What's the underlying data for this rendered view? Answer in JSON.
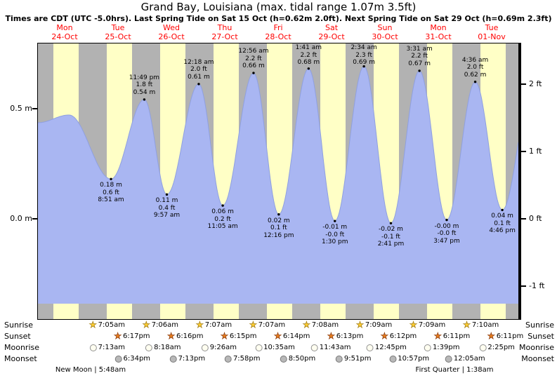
{
  "header": {
    "title": "Grand Bay, Louisiana (max. tidal range 1.07m 3.5ft)",
    "subtitle": "Times are CDT (UTC -5.0hrs). Last Spring Tide on Sat 15 Oct (h=0.62m 2.0ft). Next Spring Tide on Sat 29 Oct (h=0.69m 2.3ft)"
  },
  "chart_data": {
    "type": "area",
    "title": "Tide height curve for Grand Bay, Louisiana",
    "ylabel_left": "meters",
    "ylabel_right": "feet",
    "x_range_days": 9,
    "grid": false,
    "days": [
      {
        "weekday": "Mon",
        "date": "24-Oct"
      },
      {
        "weekday": "Tue",
        "date": "25-Oct"
      },
      {
        "weekday": "Wed",
        "date": "26-Oct"
      },
      {
        "weekday": "Thu",
        "date": "27-Oct"
      },
      {
        "weekday": "Fri",
        "date": "28-Oct"
      },
      {
        "weekday": "Sat",
        "date": "29-Oct"
      },
      {
        "weekday": "Sun",
        "date": "30-Oct"
      },
      {
        "weekday": "Mon",
        "date": "31-Oct"
      },
      {
        "weekday": "Tue",
        "date": "01-Nov"
      }
    ],
    "y_ticks_left": [
      {
        "label": "0.5 m",
        "value_m": 0.5
      },
      {
        "label": "0.0 m",
        "value_m": 0.0
      }
    ],
    "y_ticks_right": [
      {
        "label": "2 ft",
        "value_m": 0.6096
      },
      {
        "label": "1 ft",
        "value_m": 0.3048
      },
      {
        "label": "0 ft",
        "value_m": 0.0
      },
      {
        "label": "-1 ft",
        "value_m": -0.3048
      }
    ],
    "daylight": {
      "sunrise_hour": 7.09,
      "sunset_hour": 18.25
    },
    "tide_events": [
      {
        "day": 0,
        "hour": 0.0,
        "height_m": 0.435,
        "type": "edge",
        "labeled": false
      },
      {
        "day": 0,
        "hour": 14.0,
        "height_m": 0.47,
        "type": "high",
        "labeled": false
      },
      {
        "day": 1,
        "hour": 8.85,
        "height_m": 0.18,
        "type": "low",
        "labeled": true,
        "label_m": "0.18 m",
        "label_ft": "0.6 ft",
        "label_time": "8:51 am"
      },
      {
        "day": 1,
        "hour": 23.817,
        "height_m": 0.54,
        "type": "high",
        "labeled": true,
        "label_m": "0.54 m",
        "label_ft": "1.8 ft",
        "label_time": "11:49 pm"
      },
      {
        "day": 2,
        "hour": 9.95,
        "height_m": 0.11,
        "type": "low",
        "labeled": true,
        "label_m": "0.11 m",
        "label_ft": "0.4 ft",
        "label_time": "9:57 am"
      },
      {
        "day": 3,
        "hour": 0.3,
        "height_m": 0.61,
        "type": "high",
        "labeled": true,
        "label_m": "0.61 m",
        "label_ft": "2.0 ft",
        "label_time": "12:18 am"
      },
      {
        "day": 3,
        "hour": 11.083,
        "height_m": 0.06,
        "type": "low",
        "labeled": true,
        "label_m": "0.06 m",
        "label_ft": "0.2 ft",
        "label_time": "11:05 am"
      },
      {
        "day": 4,
        "hour": 0.933,
        "height_m": 0.66,
        "type": "high",
        "labeled": true,
        "label_m": "0.66 m",
        "label_ft": "2.2 ft",
        "label_time": "12:56 am"
      },
      {
        "day": 4,
        "hour": 12.267,
        "height_m": 0.02,
        "type": "low",
        "labeled": true,
        "label_m": "0.02 m",
        "label_ft": "0.1 ft",
        "label_time": "12:16 pm"
      },
      {
        "day": 5,
        "hour": 1.683,
        "height_m": 0.68,
        "type": "high",
        "labeled": true,
        "label_m": "0.68 m",
        "label_ft": "2.2 ft",
        "label_time": "1:41 am"
      },
      {
        "day": 5,
        "hour": 13.5,
        "height_m": -0.01,
        "type": "low",
        "labeled": true,
        "label_m": "-0.01 m",
        "label_ft": "-0.0 ft",
        "label_time": "1:30 pm"
      },
      {
        "day": 6,
        "hour": 2.567,
        "height_m": 0.69,
        "type": "high",
        "labeled": true,
        "label_m": "0.69 m",
        "label_ft": "2.3 ft",
        "label_time": "2:34 am"
      },
      {
        "day": 6,
        "hour": 14.683,
        "height_m": -0.02,
        "type": "low",
        "labeled": true,
        "label_m": "-0.02 m",
        "label_ft": "-0.1 ft",
        "label_time": "2:41 pm"
      },
      {
        "day": 7,
        "hour": 3.517,
        "height_m": 0.67,
        "type": "high",
        "labeled": true,
        "label_m": "0.67 m",
        "label_ft": "2.2 ft",
        "label_time": "3:31 am"
      },
      {
        "day": 7,
        "hour": 15.783,
        "height_m": -0.005,
        "type": "low",
        "labeled": true,
        "label_m": "-0.00 m",
        "label_ft": "-0.0 ft",
        "label_time": "3:47 pm"
      },
      {
        "day": 8,
        "hour": 4.6,
        "height_m": 0.62,
        "type": "high",
        "labeled": true,
        "label_m": "0.62 m",
        "label_ft": "2.0 ft",
        "label_time": "4:36 am"
      },
      {
        "day": 8,
        "hour": 16.767,
        "height_m": 0.04,
        "type": "low",
        "labeled": true,
        "label_m": "0.04 m",
        "label_ft": "0.1 ft",
        "label_time": "4:46 pm"
      },
      {
        "day": 9,
        "hour": 5.75,
        "height_m": 0.56,
        "type": "edge",
        "labeled": false
      }
    ],
    "colors": {
      "night_band": "#b2b2b2",
      "day_band": "#ffffc6",
      "water_fill": "#a9b6f2",
      "water_edge": "#8fa0e0",
      "date_red": "#ff0000"
    }
  },
  "astro": {
    "rows": [
      {
        "label": "Sunrise",
        "icon": "sunrise-star",
        "entries": [
          {
            "day": 1,
            "hour": 7.083,
            "time": "7:05am"
          },
          {
            "day": 2,
            "hour": 7.1,
            "time": "7:06am"
          },
          {
            "day": 3,
            "hour": 7.117,
            "time": "7:07am"
          },
          {
            "day": 4,
            "hour": 7.117,
            "time": "7:07am"
          },
          {
            "day": 5,
            "hour": 7.133,
            "time": "7:08am"
          },
          {
            "day": 6,
            "hour": 7.15,
            "time": "7:09am"
          },
          {
            "day": 7,
            "hour": 7.15,
            "time": "7:09am"
          },
          {
            "day": 8,
            "hour": 7.167,
            "time": "7:10am"
          }
        ]
      },
      {
        "label": "Sunset",
        "icon": "sunset-star",
        "entries": [
          {
            "day": 1,
            "hour": 18.283,
            "time": "6:17pm"
          },
          {
            "day": 2,
            "hour": 18.267,
            "time": "6:16pm"
          },
          {
            "day": 3,
            "hour": 18.25,
            "time": "6:15pm"
          },
          {
            "day": 4,
            "hour": 18.233,
            "time": "6:14pm"
          },
          {
            "day": 5,
            "hour": 18.217,
            "time": "6:13pm"
          },
          {
            "day": 6,
            "hour": 18.2,
            "time": "6:12pm"
          },
          {
            "day": 7,
            "hour": 18.183,
            "time": "6:11pm"
          },
          {
            "day": 8,
            "hour": 18.183,
            "time": "6:11pm"
          }
        ]
      },
      {
        "label": "Moonrise",
        "icon": "moonrise-circle",
        "entries": [
          {
            "day": 1,
            "hour": 7.217,
            "time": "7:13am"
          },
          {
            "day": 2,
            "hour": 8.3,
            "time": "8:18am"
          },
          {
            "day": 3,
            "hour": 9.433,
            "time": "9:26am"
          },
          {
            "day": 4,
            "hour": 10.583,
            "time": "10:35am"
          },
          {
            "day": 5,
            "hour": 11.717,
            "time": "11:43am"
          },
          {
            "day": 6,
            "hour": 12.75,
            "time": "12:45pm"
          },
          {
            "day": 7,
            "hour": 13.65,
            "time": "1:39pm"
          },
          {
            "day": 8,
            "hour": 14.417,
            "time": "2:25pm"
          }
        ]
      },
      {
        "label": "Moonset",
        "icon": "moonset-circle",
        "entries": [
          {
            "day": 1,
            "hour": 18.567,
            "time": "6:34pm"
          },
          {
            "day": 2,
            "hour": 19.217,
            "time": "7:13pm"
          },
          {
            "day": 3,
            "hour": 19.967,
            "time": "7:58pm"
          },
          {
            "day": 4,
            "hour": 20.833,
            "time": "8:50pm"
          },
          {
            "day": 5,
            "hour": 21.85,
            "time": "9:51pm"
          },
          {
            "day": 6,
            "hour": 22.95,
            "time": "10:57pm"
          },
          {
            "day": 8,
            "hour": 0.083,
            "time": "12:05am"
          }
        ]
      }
    ],
    "moon_phases": [
      {
        "name": "New Moon",
        "time": "5:48am",
        "display": "New Moon | 5:48am"
      },
      {
        "name": "First Quarter",
        "time": "1:38am",
        "display": "First Quarter | 1:38am"
      }
    ]
  }
}
